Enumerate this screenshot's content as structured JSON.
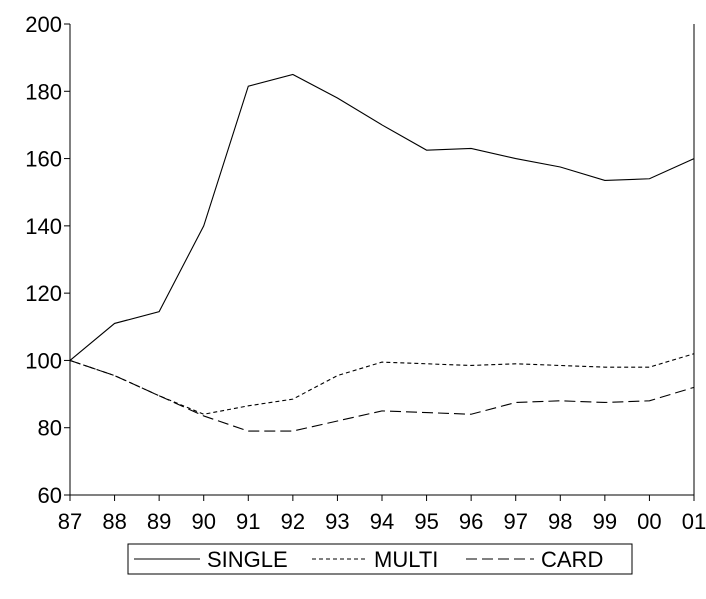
{
  "chart_data": {
    "type": "line",
    "title": "",
    "xlabel": "",
    "ylabel": "",
    "x": [
      "87",
      "88",
      "89",
      "90",
      "91",
      "92",
      "93",
      "94",
      "95",
      "96",
      "97",
      "98",
      "99",
      "00",
      "01"
    ],
    "ylim": [
      60,
      200
    ],
    "yticks": [
      60,
      80,
      100,
      120,
      140,
      160,
      180,
      200
    ],
    "grid": false,
    "legend": "bottom",
    "series": [
      {
        "name": "SINGLE",
        "dash": "solid",
        "values": [
          100,
          111,
          114.5,
          140,
          181.5,
          185,
          178,
          170,
          162.5,
          163,
          160,
          157.5,
          153.5,
          154,
          160
        ]
      },
      {
        "name": "MULTI",
        "dash": "short-dash",
        "values": [
          100,
          95.5,
          89.5,
          84,
          86.5,
          88.5,
          95.5,
          99.5,
          99,
          98.5,
          99,
          98.5,
          98,
          98,
          102
        ]
      },
      {
        "name": "CARD",
        "dash": "long-dash",
        "values": [
          100,
          95.5,
          89.5,
          83.5,
          79,
          79,
          82,
          85,
          84.5,
          84,
          87.5,
          88,
          87.5,
          88,
          92
        ]
      }
    ]
  }
}
